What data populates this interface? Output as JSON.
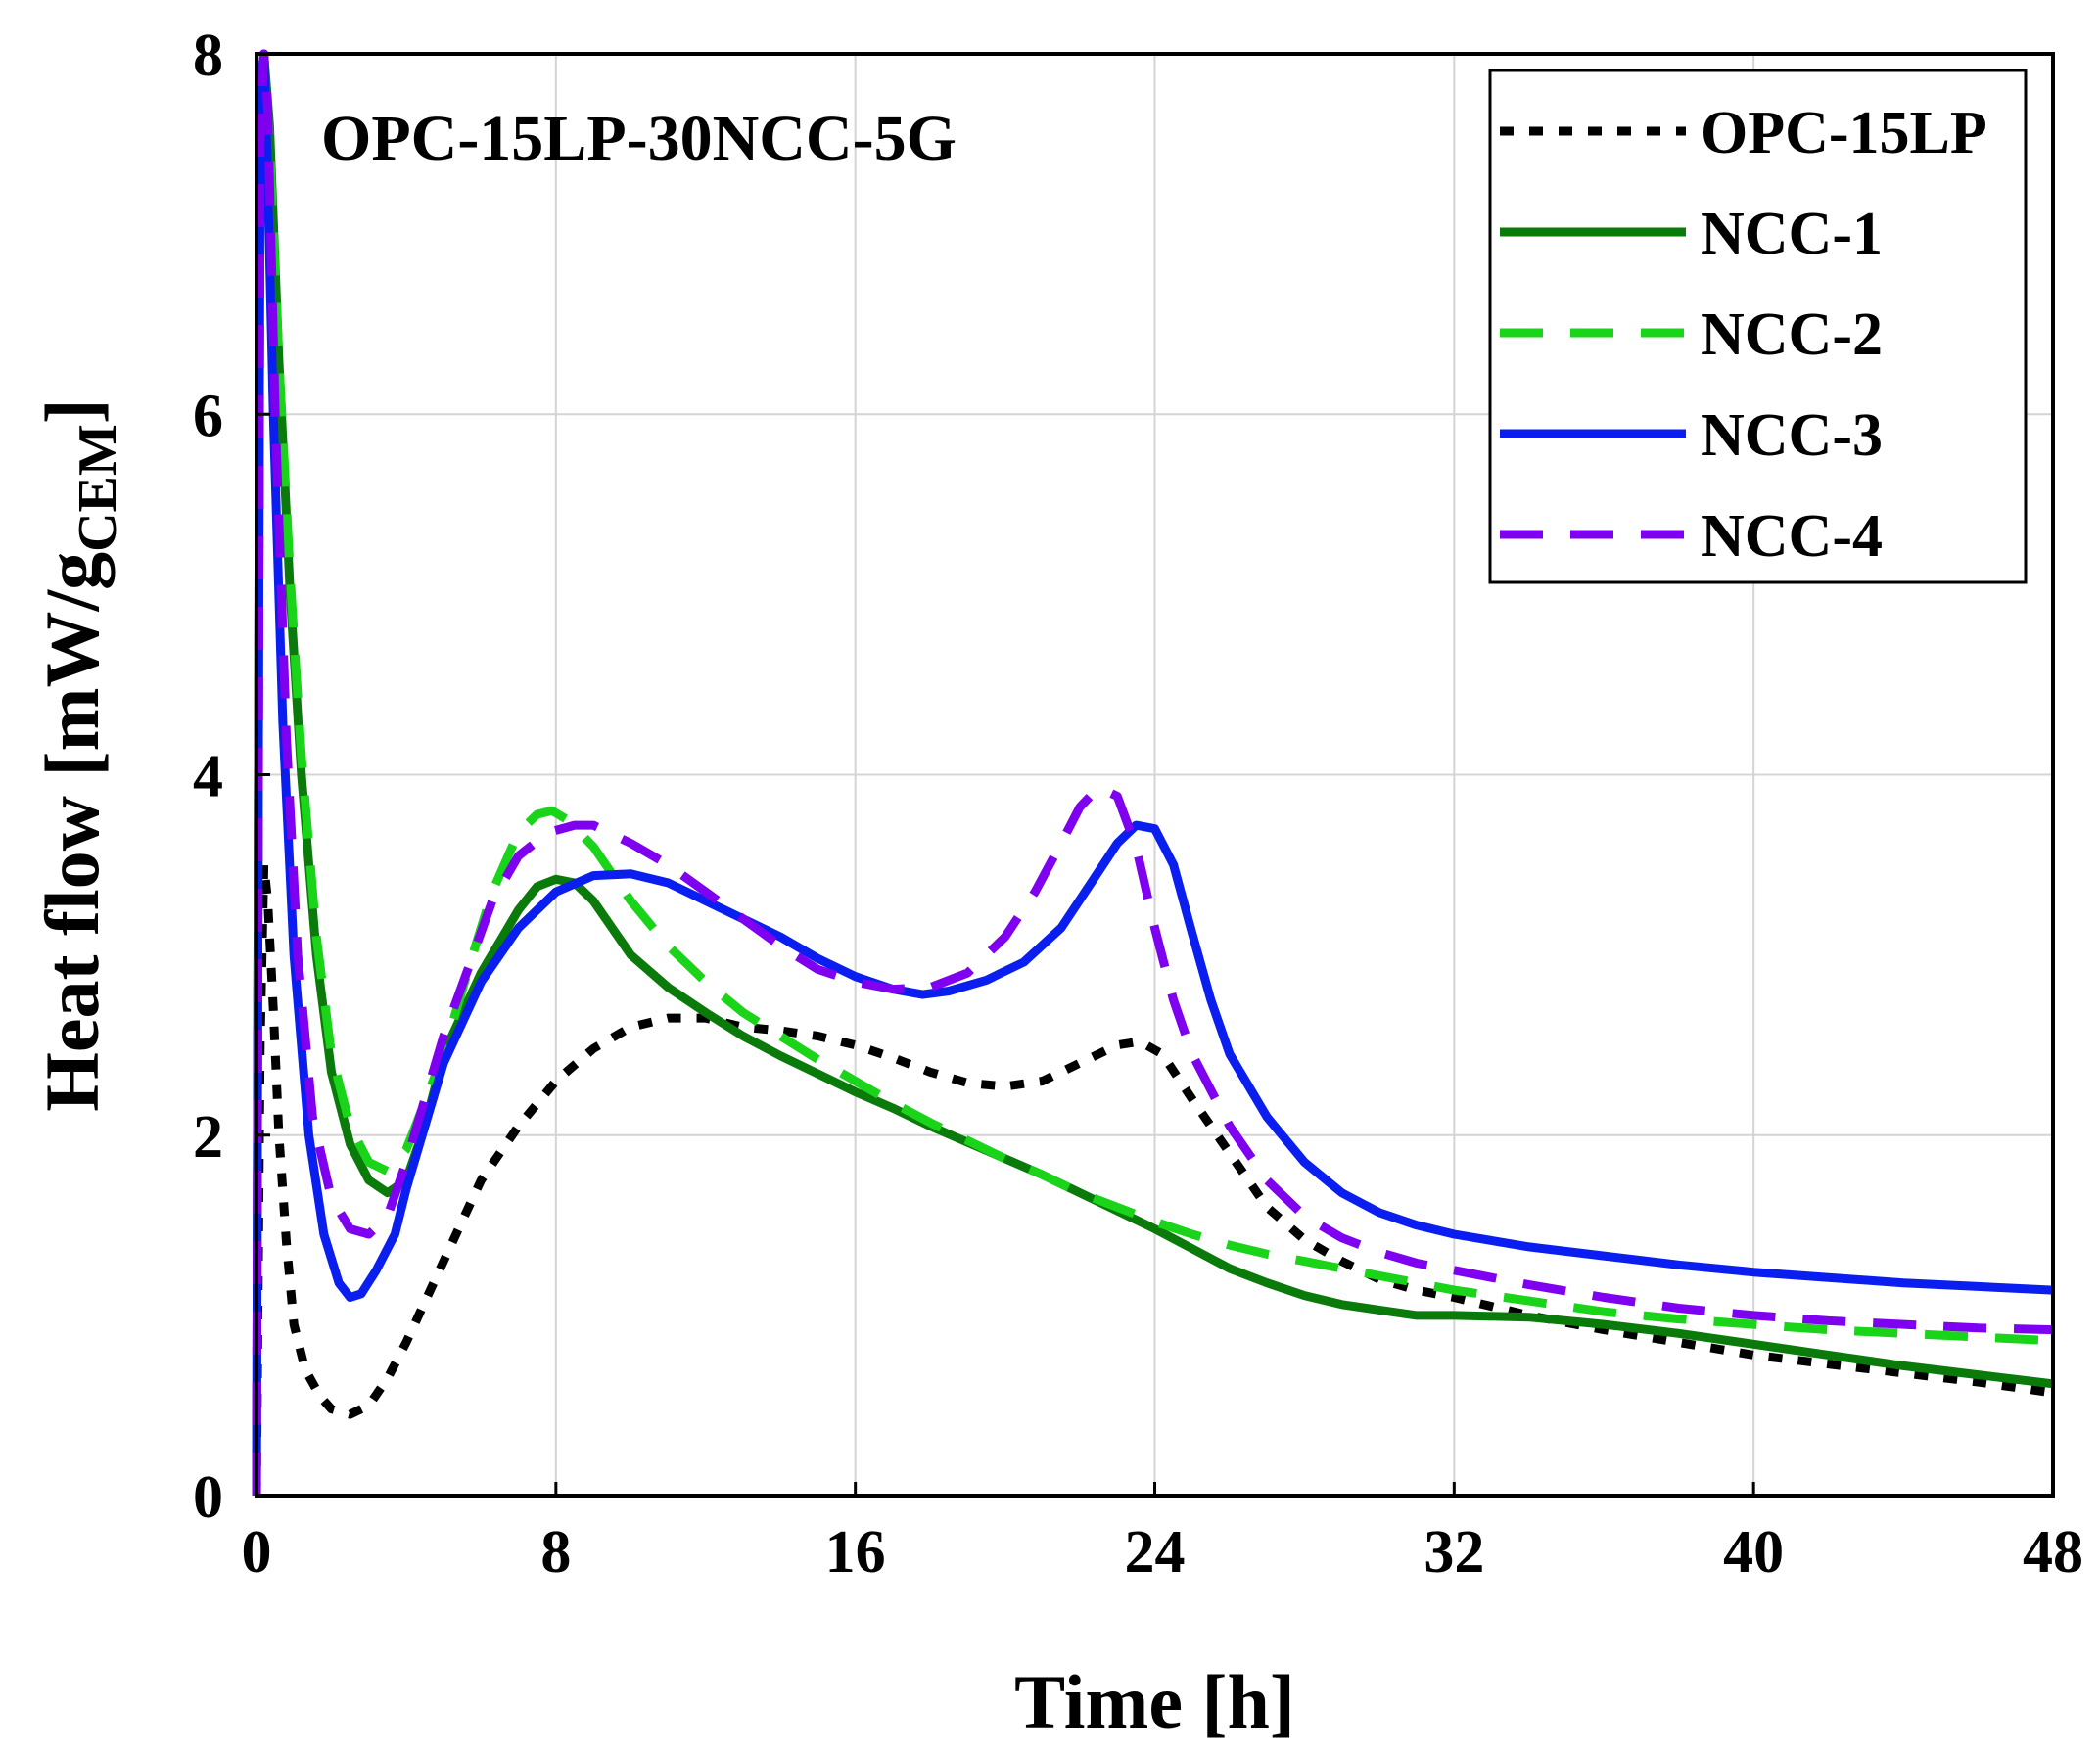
{
  "chart_data": {
    "type": "line",
    "title": "",
    "annotation": "OPC-15LP-30NCC-5G",
    "xlabel": "Time [h]",
    "ylabel_main": "Heat flow [mW/g",
    "ylabel_sub": "CEM",
    "ylabel_close": "]",
    "xlim": [
      0,
      48
    ],
    "ylim": [
      0,
      8
    ],
    "xticks": [
      0,
      8,
      16,
      24,
      32,
      40,
      48
    ],
    "yticks": [
      0,
      2,
      4,
      6,
      8
    ],
    "xtick_labels": [
      "0",
      "8",
      "16",
      "24",
      "32",
      "40",
      "48"
    ],
    "ytick_labels": [
      "0",
      "2",
      "4",
      "6",
      "8"
    ],
    "grid": true,
    "legend_position": "top-right",
    "series": [
      {
        "name": "OPC-15LP",
        "color": "#000000",
        "style": "dotted",
        "x": [
          0,
          0.1,
          0.2,
          0.3,
          0.45,
          0.6,
          0.8,
          1.0,
          1.3,
          1.7,
          2.0,
          2.5,
          3.0,
          3.5,
          4.0,
          5.0,
          6.0,
          7.0,
          8.0,
          9.0,
          10.0,
          11.0,
          12.0,
          13.0,
          14.0,
          15.0,
          16.0,
          17.0,
          18.0,
          19.0,
          20.0,
          21.0,
          22.0,
          23.0,
          23.6,
          24.2,
          25.0,
          26.0,
          27.0,
          28.0,
          29.0,
          30.0,
          31.0,
          32.0,
          34.0,
          36.0,
          38.0,
          40.0,
          42.0,
          44.0,
          46.0,
          48.0
        ],
        "y": [
          0.0,
          2.5,
          3.5,
          3.3,
          2.7,
          2.0,
          1.4,
          0.95,
          0.7,
          0.55,
          0.48,
          0.45,
          0.5,
          0.65,
          0.85,
          1.3,
          1.75,
          2.05,
          2.3,
          2.48,
          2.6,
          2.65,
          2.65,
          2.6,
          2.58,
          2.55,
          2.5,
          2.43,
          2.35,
          2.29,
          2.27,
          2.3,
          2.4,
          2.5,
          2.52,
          2.45,
          2.2,
          1.9,
          1.6,
          1.42,
          1.3,
          1.2,
          1.14,
          1.1,
          1.0,
          0.92,
          0.85,
          0.78,
          0.73,
          0.68,
          0.63,
          0.57
        ]
      },
      {
        "name": "NCC-1",
        "color": "#0a7a0a",
        "style": "solid",
        "x": [
          0,
          0.1,
          0.2,
          0.35,
          0.6,
          0.9,
          1.2,
          1.6,
          2.0,
          2.5,
          3.0,
          3.5,
          4.0,
          4.5,
          5.0,
          6.0,
          7.0,
          7.5,
          8.0,
          8.5,
          9.0,
          10.0,
          11.0,
          12.0,
          13.0,
          14.0,
          15.0,
          16.0,
          17.0,
          18.0,
          19.0,
          20.0,
          21.0,
          22.0,
          23.0,
          24.0,
          25.0,
          26.0,
          27.0,
          28.0,
          29.0,
          30.0,
          31.0,
          32.0,
          34.0,
          36.0,
          38.0,
          40.0,
          42.0,
          44.0,
          46.0,
          48.0
        ],
        "y": [
          0.0,
          7.8,
          8.0,
          7.6,
          6.3,
          5.0,
          4.0,
          3.0,
          2.35,
          1.95,
          1.75,
          1.68,
          1.75,
          2.05,
          2.45,
          2.9,
          3.25,
          3.38,
          3.42,
          3.4,
          3.3,
          3.0,
          2.82,
          2.68,
          2.55,
          2.44,
          2.34,
          2.24,
          2.15,
          2.05,
          1.96,
          1.87,
          1.78,
          1.68,
          1.58,
          1.48,
          1.37,
          1.26,
          1.18,
          1.11,
          1.06,
          1.03,
          1.0,
          1.0,
          0.99,
          0.95,
          0.9,
          0.84,
          0.78,
          0.72,
          0.67,
          0.62
        ]
      },
      {
        "name": "NCC-2",
        "color": "#19d419",
        "style": "dashed",
        "x": [
          0,
          0.1,
          0.2,
          0.35,
          0.6,
          0.9,
          1.2,
          1.6,
          2.0,
          2.5,
          3.0,
          3.5,
          4.0,
          5.0,
          5.7,
          6.3,
          7.0,
          7.5,
          7.9,
          8.3,
          9.0,
          10.0,
          11.0,
          12.0,
          13.0,
          14.0,
          15.0,
          16.0,
          17.0,
          18.0,
          19.0,
          20.0,
          21.0,
          22.0,
          23.0,
          24.0,
          25.0,
          26.0,
          27.0,
          28.0,
          29.0,
          30.0,
          31.0,
          32.0,
          34.0,
          36.0,
          38.0,
          40.0,
          42.0,
          44.0,
          46.0,
          48.0
        ],
        "y": [
          0.0,
          7.6,
          8.0,
          7.5,
          6.3,
          5.1,
          4.1,
          3.1,
          2.45,
          2.05,
          1.85,
          1.8,
          1.92,
          2.45,
          2.95,
          3.35,
          3.68,
          3.78,
          3.8,
          3.75,
          3.6,
          3.3,
          3.05,
          2.85,
          2.68,
          2.55,
          2.42,
          2.3,
          2.18,
          2.07,
          1.97,
          1.87,
          1.78,
          1.68,
          1.6,
          1.52,
          1.45,
          1.39,
          1.34,
          1.3,
          1.26,
          1.22,
          1.18,
          1.14,
          1.08,
          1.02,
          0.98,
          0.95,
          0.92,
          0.9,
          0.88,
          0.86
        ]
      },
      {
        "name": "NCC-3",
        "color": "#0a1ef0",
        "style": "solid",
        "x": [
          0,
          0.1,
          0.2,
          0.3,
          0.45,
          0.7,
          1.0,
          1.4,
          1.8,
          2.2,
          2.5,
          2.8,
          3.2,
          3.7,
          4.0,
          4.5,
          5.0,
          6.0,
          7.0,
          8.0,
          9.0,
          10.0,
          11.0,
          12.0,
          13.0,
          14.0,
          15.0,
          16.0,
          17.0,
          17.8,
          18.5,
          19.5,
          20.5,
          21.5,
          22.3,
          23.0,
          23.5,
          24.0,
          24.5,
          25.0,
          25.5,
          26.0,
          27.0,
          28.0,
          29.0,
          30.0,
          31.0,
          32.0,
          34.0,
          36.0,
          38.0,
          40.0,
          42.0,
          44.0,
          46.0,
          48.0
        ],
        "y": [
          0.0,
          7.8,
          8.0,
          7.3,
          6.0,
          4.3,
          3.0,
          2.0,
          1.45,
          1.18,
          1.1,
          1.12,
          1.25,
          1.45,
          1.7,
          2.05,
          2.4,
          2.85,
          3.15,
          3.35,
          3.44,
          3.45,
          3.4,
          3.3,
          3.2,
          3.1,
          2.98,
          2.88,
          2.81,
          2.78,
          2.8,
          2.86,
          2.96,
          3.15,
          3.4,
          3.62,
          3.72,
          3.7,
          3.5,
          3.12,
          2.75,
          2.45,
          2.1,
          1.85,
          1.68,
          1.57,
          1.5,
          1.45,
          1.38,
          1.33,
          1.28,
          1.24,
          1.21,
          1.18,
          1.16,
          1.14
        ]
      },
      {
        "name": "NCC-4",
        "color": "#7f00f0",
        "style": "dashed",
        "x": [
          0,
          0.1,
          0.2,
          0.3,
          0.5,
          0.8,
          1.1,
          1.5,
          2.0,
          2.5,
          3.0,
          3.5,
          4.0,
          4.5,
          5.0,
          5.7,
          6.3,
          7.0,
          7.8,
          8.5,
          9.0,
          10.0,
          11.0,
          12.0,
          13.0,
          14.0,
          15.0,
          16.0,
          17.0,
          18.0,
          19.0,
          20.0,
          20.8,
          21.5,
          22.0,
          22.5,
          23.0,
          23.5,
          24.0,
          24.5,
          25.0,
          26.0,
          27.0,
          28.0,
          29.0,
          30.0,
          31.0,
          32.0,
          34.0,
          36.0,
          38.0,
          40.0,
          42.0,
          44.0,
          46.0,
          48.0
        ],
        "y": [
          0.0,
          7.5,
          8.0,
          7.7,
          6.0,
          4.2,
          3.0,
          2.1,
          1.65,
          1.48,
          1.45,
          1.55,
          1.85,
          2.2,
          2.55,
          2.95,
          3.3,
          3.55,
          3.68,
          3.72,
          3.72,
          3.62,
          3.5,
          3.35,
          3.2,
          3.05,
          2.92,
          2.85,
          2.81,
          2.82,
          2.9,
          3.1,
          3.35,
          3.62,
          3.82,
          3.93,
          3.88,
          3.6,
          3.15,
          2.75,
          2.45,
          2.05,
          1.75,
          1.55,
          1.43,
          1.35,
          1.29,
          1.25,
          1.17,
          1.1,
          1.04,
          1.0,
          0.97,
          0.95,
          0.93,
          0.92
        ]
      }
    ]
  }
}
